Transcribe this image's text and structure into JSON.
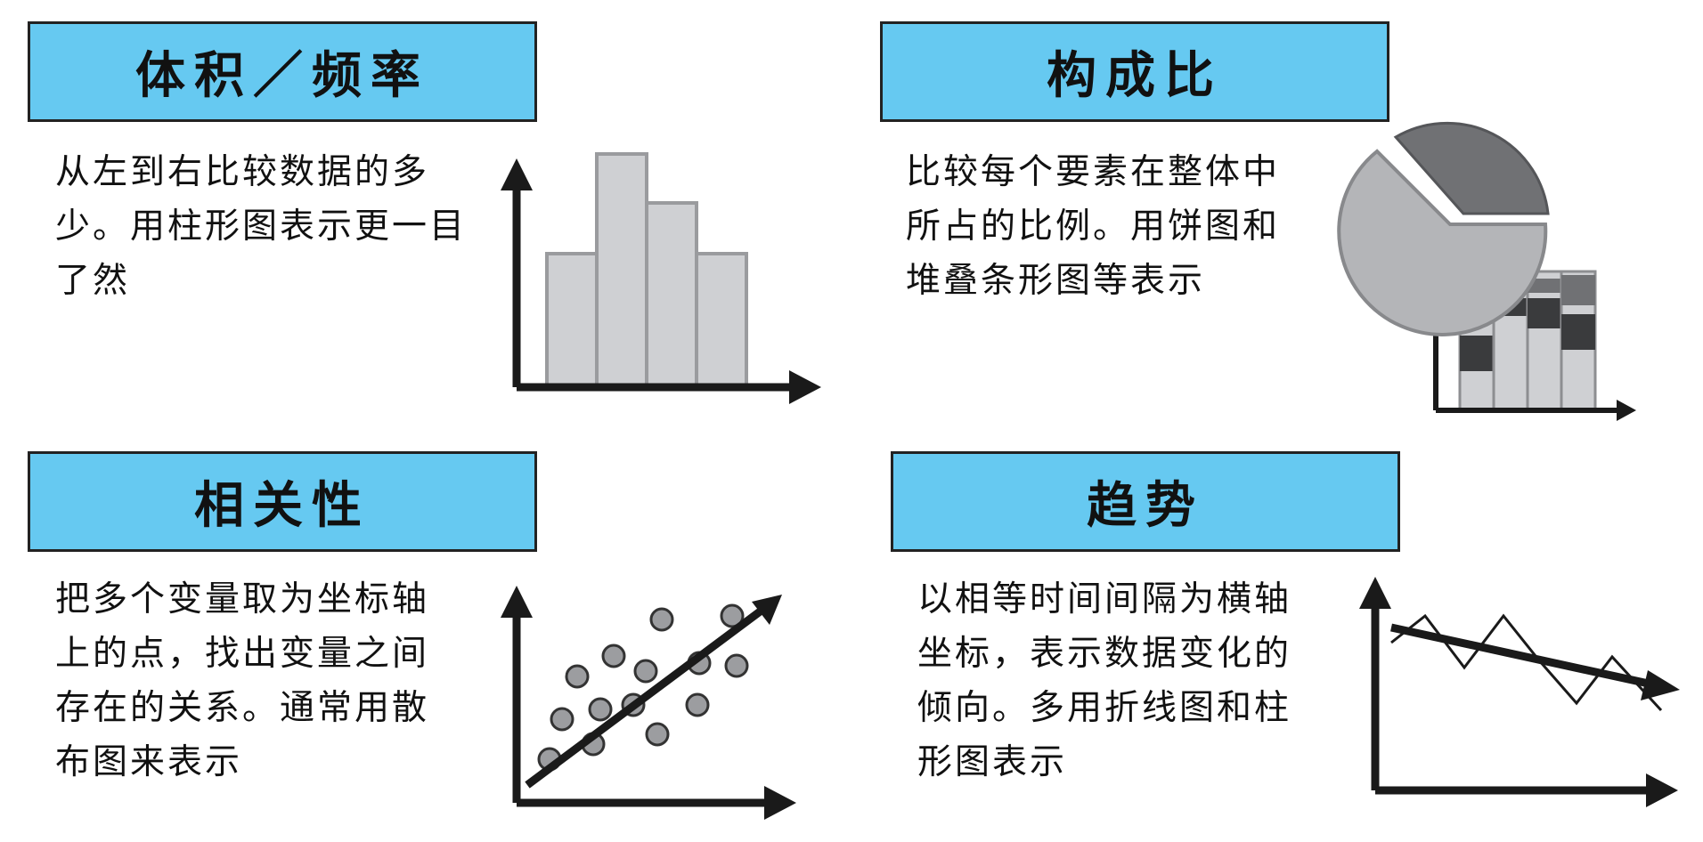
{
  "panels": {
    "volume": {
      "title": "体积／频率",
      "lines": [
        "从左到右比较数据的多",
        "少。用柱形图表示更一目",
        "了然"
      ]
    },
    "composition": {
      "title": "构成比",
      "lines": [
        "比较每个要素在整体中",
        "所占的比例。用饼图和",
        "堆叠条形图等表示"
      ]
    },
    "correlation": {
      "title": "相关性",
      "lines": [
        "把多个变量取为坐标轴",
        "上的点，找出变量之间",
        "存在的关系。通常用散",
        "布图来表示"
      ]
    },
    "trend": {
      "title": "趋势",
      "lines": [
        "以相等时间间隔为横轴",
        "坐标，表示数据变化的",
        "倾向。多用折线图和柱",
        "形图表示"
      ]
    }
  },
  "colors": {
    "header": "#66c9f1",
    "bar_light": "#cfd0d3",
    "pie_light": "#b4b5b8",
    "pie_dark": "#707174",
    "stack_dark": "#3a3b3d",
    "dot": "#9c9da0",
    "ink": "#1a1a1a"
  },
  "icons": [
    "bar-chart-icon",
    "pie-chart-icon",
    "stacked-bar-chart-icon",
    "scatter-plot-icon",
    "line-chart-icon"
  ]
}
